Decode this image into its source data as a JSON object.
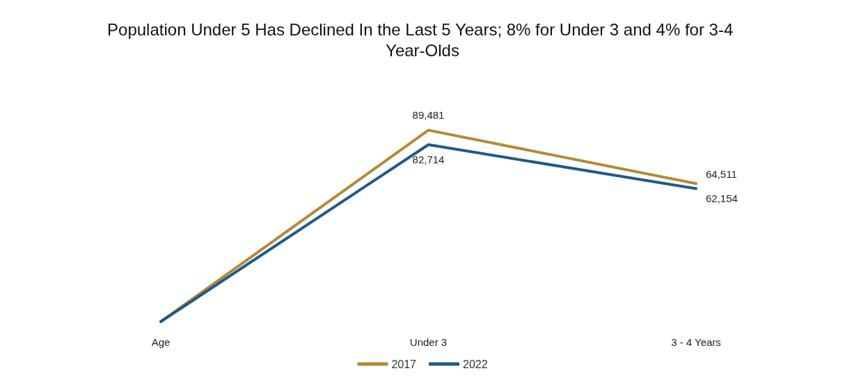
{
  "chart_data": {
    "type": "line",
    "title": "Population Under 5 Has Declined In the Last 5 Years; 8% for Under 3 and 4% for 3-4 Year-Olds",
    "categories": [
      "Age",
      "Under 3",
      "3 - 4 Years"
    ],
    "series": [
      {
        "name": "2017",
        "color": "#b58a35",
        "values": [
          0,
          89481,
          64511
        ],
        "value_labels": [
          null,
          "89,481",
          "64,511"
        ]
      },
      {
        "name": "2022",
        "color": "#1f5a8a",
        "values": [
          0,
          82714,
          62154
        ],
        "value_labels": [
          null,
          "82,714",
          "62,154"
        ]
      }
    ],
    "legend": "bottom",
    "marker": "none",
    "line_style": "solid",
    "grid": false
  }
}
